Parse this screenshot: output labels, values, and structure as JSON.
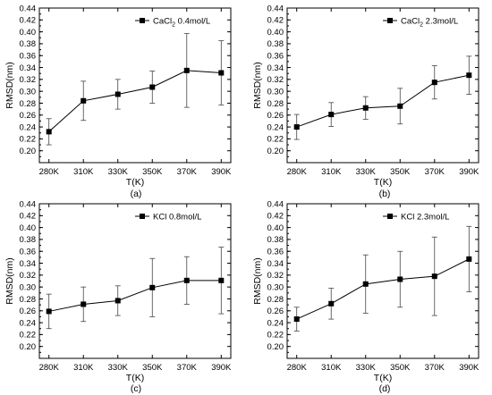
{
  "chart_data": [
    {
      "type": "line",
      "panel": "(a)",
      "legend": {
        "prefix": "CaCl",
        "sub": "2",
        "suffix": " 0.4mol/L",
        "placement": "top-right"
      },
      "xlabel": "T(K)",
      "ylabel": "RMSD(nm)",
      "categories": [
        "280K",
        "310K",
        "330K",
        "350K",
        "370K",
        "390K"
      ],
      "ylim": [
        0.18,
        0.44
      ],
      "yticks": [
        "0.20",
        "0.22",
        "0.24",
        "0.26",
        "0.28",
        "0.30",
        "0.32",
        "0.34",
        "0.36",
        "0.38",
        "0.40",
        "0.42",
        "0.44"
      ],
      "series": [
        {
          "values": [
            0.232,
            0.284,
            0.295,
            0.307,
            0.335,
            0.331
          ],
          "errors": [
            0.022,
            0.033,
            0.025,
            0.027,
            0.062,
            0.054
          ]
        }
      ]
    },
    {
      "type": "line",
      "panel": "(b)",
      "legend": {
        "prefix": "CaCl",
        "sub": "2",
        "suffix": " 2.3mol/L",
        "placement": "top-right"
      },
      "xlabel": "T(K)",
      "ylabel": "RMSD(nm)",
      "categories": [
        "280K",
        "310K",
        "330K",
        "350K",
        "370K",
        "390K"
      ],
      "ylim": [
        0.18,
        0.44
      ],
      "yticks": [
        "0.20",
        "0.22",
        "0.24",
        "0.26",
        "0.28",
        "0.30",
        "0.32",
        "0.34",
        "0.36",
        "0.38",
        "0.40",
        "0.42",
        "0.44"
      ],
      "series": [
        {
          "values": [
            0.24,
            0.261,
            0.272,
            0.275,
            0.315,
            0.327
          ],
          "errors": [
            0.021,
            0.02,
            0.019,
            0.03,
            0.028,
            0.032
          ]
        }
      ]
    },
    {
      "type": "line",
      "panel": "(c)",
      "legend": {
        "prefix": "KCl 0.8mol/L",
        "sub": "",
        "suffix": "",
        "placement": "top-right"
      },
      "xlabel": "T(K)",
      "ylabel": "RMSD(nm)",
      "categories": [
        "280K",
        "310K",
        "330K",
        "350K",
        "370K",
        "390K"
      ],
      "ylim": [
        0.18,
        0.44
      ],
      "yticks": [
        "0.20",
        "0.22",
        "0.24",
        "0.26",
        "0.28",
        "0.30",
        "0.32",
        "0.34",
        "0.36",
        "0.38",
        "0.40",
        "0.42",
        "0.44"
      ],
      "series": [
        {
          "values": [
            0.259,
            0.271,
            0.277,
            0.299,
            0.311,
            0.311
          ],
          "errors": [
            0.029,
            0.029,
            0.025,
            0.049,
            0.04,
            0.056
          ]
        }
      ]
    },
    {
      "type": "line",
      "panel": "(d)",
      "legend": {
        "prefix": "KCl 2.3mol/L",
        "sub": "",
        "suffix": "",
        "placement": "top-right"
      },
      "xlabel": "T(K)",
      "ylabel": "RMSD(nm)",
      "categories": [
        "280K",
        "310K",
        "330K",
        "350K",
        "370K",
        "390K"
      ],
      "ylim": [
        0.18,
        0.44
      ],
      "yticks": [
        "0.20",
        "0.22",
        "0.24",
        "0.26",
        "0.28",
        "0.30",
        "0.32",
        "0.34",
        "0.36",
        "0.38",
        "0.40",
        "0.42",
        "0.44"
      ],
      "series": [
        {
          "values": [
            0.246,
            0.272,
            0.305,
            0.313,
            0.318,
            0.347
          ],
          "errors": [
            0.02,
            0.026,
            0.049,
            0.047,
            0.066,
            0.055
          ]
        }
      ]
    }
  ]
}
